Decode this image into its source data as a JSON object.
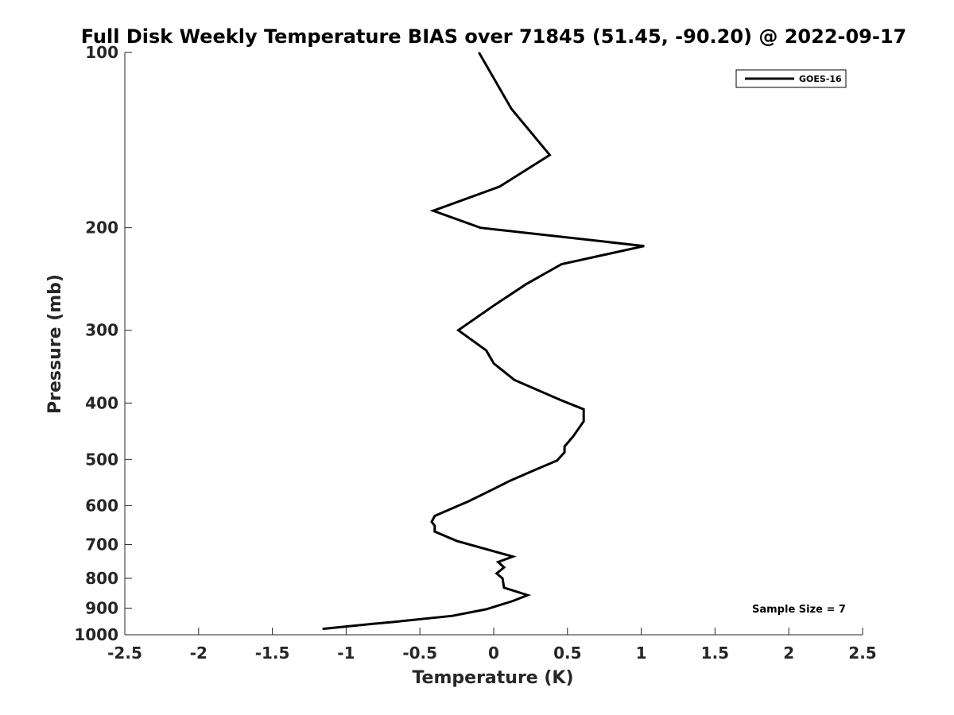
{
  "chart_data": {
    "type": "line",
    "title": "Full Disk Weekly Temperature BIAS over 71845 (51.45, -90.20) @ 2022-09-17",
    "xlabel": "Temperature (K)",
    "ylabel": "Pressure (mb)",
    "xlim": [
      -2.5,
      2.5
    ],
    "ylim": [
      1000,
      100
    ],
    "yscale": "log",
    "y_reversed": true,
    "grid": false,
    "legend_position": "top-right",
    "x_ticks": [
      "-2.5",
      "-2",
      "-1.5",
      "-1",
      "-0.5",
      "0",
      "0.5",
      "1",
      "1.5",
      "2",
      "2.5"
    ],
    "y_ticks": [
      "100",
      "200",
      "300",
      "400",
      "500",
      "600",
      "700",
      "800",
      "900",
      "1000"
    ],
    "annotation": "Sample Size = 7",
    "series": [
      {
        "name": "GOES-16",
        "color": "#000000",
        "points": [
          [
            -0.1,
            100
          ],
          [
            0.12,
            125
          ],
          [
            0.38,
            150
          ],
          [
            0.04,
            170
          ],
          [
            -0.41,
            187
          ],
          [
            -0.09,
            200
          ],
          [
            1.02,
            215
          ],
          [
            0.46,
            231
          ],
          [
            0.22,
            250
          ],
          [
            0.02,
            270
          ],
          [
            -0.24,
            300
          ],
          [
            -0.05,
            325
          ],
          [
            0.0,
            342
          ],
          [
            0.14,
            365
          ],
          [
            0.45,
            395
          ],
          [
            0.61,
            410
          ],
          [
            0.61,
            430
          ],
          [
            0.54,
            456
          ],
          [
            0.48,
            475
          ],
          [
            0.48,
            486
          ],
          [
            0.43,
            502
          ],
          [
            0.25,
            525
          ],
          [
            0.11,
            544
          ],
          [
            -0.02,
            565
          ],
          [
            -0.17,
            590
          ],
          [
            -0.4,
            625
          ],
          [
            -0.42,
            640
          ],
          [
            -0.4,
            650
          ],
          [
            -0.4,
            665
          ],
          [
            -0.25,
            690
          ],
          [
            0.13,
            734
          ],
          [
            0.03,
            750
          ],
          [
            0.07,
            766
          ],
          [
            0.02,
            785
          ],
          [
            0.06,
            800
          ],
          [
            0.07,
            830
          ],
          [
            0.23,
            855
          ],
          [
            0.13,
            875
          ],
          [
            -0.05,
            904
          ],
          [
            -0.28,
            928
          ],
          [
            -0.67,
            950
          ],
          [
            -0.82,
            958
          ],
          [
            -1.16,
            977
          ]
        ]
      }
    ]
  }
}
